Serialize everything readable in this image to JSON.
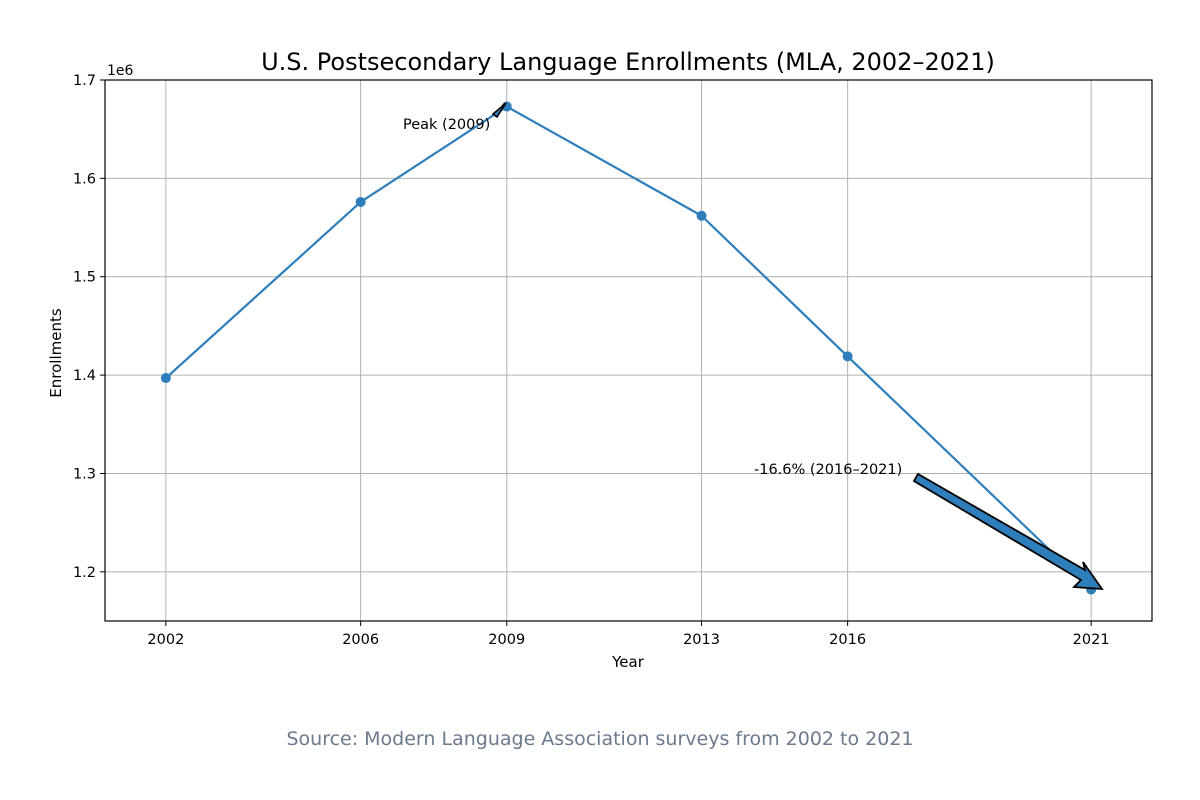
{
  "chart_data": {
    "type": "line",
    "title": "U.S. Postsecondary Language Enrollments (MLA, 2002–2021)",
    "xlabel": "Year",
    "ylabel": "Enrollments",
    "y_offset_label": "1e6",
    "x_categories": [
      "2002",
      "2006",
      "2009",
      "2013",
      "2016",
      "2021"
    ],
    "x": [
      2002,
      2006,
      2009,
      2013,
      2016,
      2021
    ],
    "y_ticks": [
      1.2,
      1.3,
      1.4,
      1.5,
      1.6,
      1.7
    ],
    "y_tick_labels": [
      "1.2",
      "1.3",
      "1.4",
      "1.5",
      "1.6",
      "1.7"
    ],
    "ylim": [
      1.15,
      1.7
    ],
    "grid": true,
    "series": [
      {
        "values": [
          1.397,
          1.576,
          1.673,
          1.562,
          1.419,
          1.182
        ]
      }
    ],
    "annotations": [
      {
        "text": "Peak (2009)",
        "x": 2009,
        "y": 1.673
      },
      {
        "text": "-16.6% (2016–2021)",
        "x": 2021,
        "y": 1.182
      }
    ],
    "color": "#2e7ebc"
  },
  "caption": "Source: Modern Language Association surveys from 2002 to 2021"
}
